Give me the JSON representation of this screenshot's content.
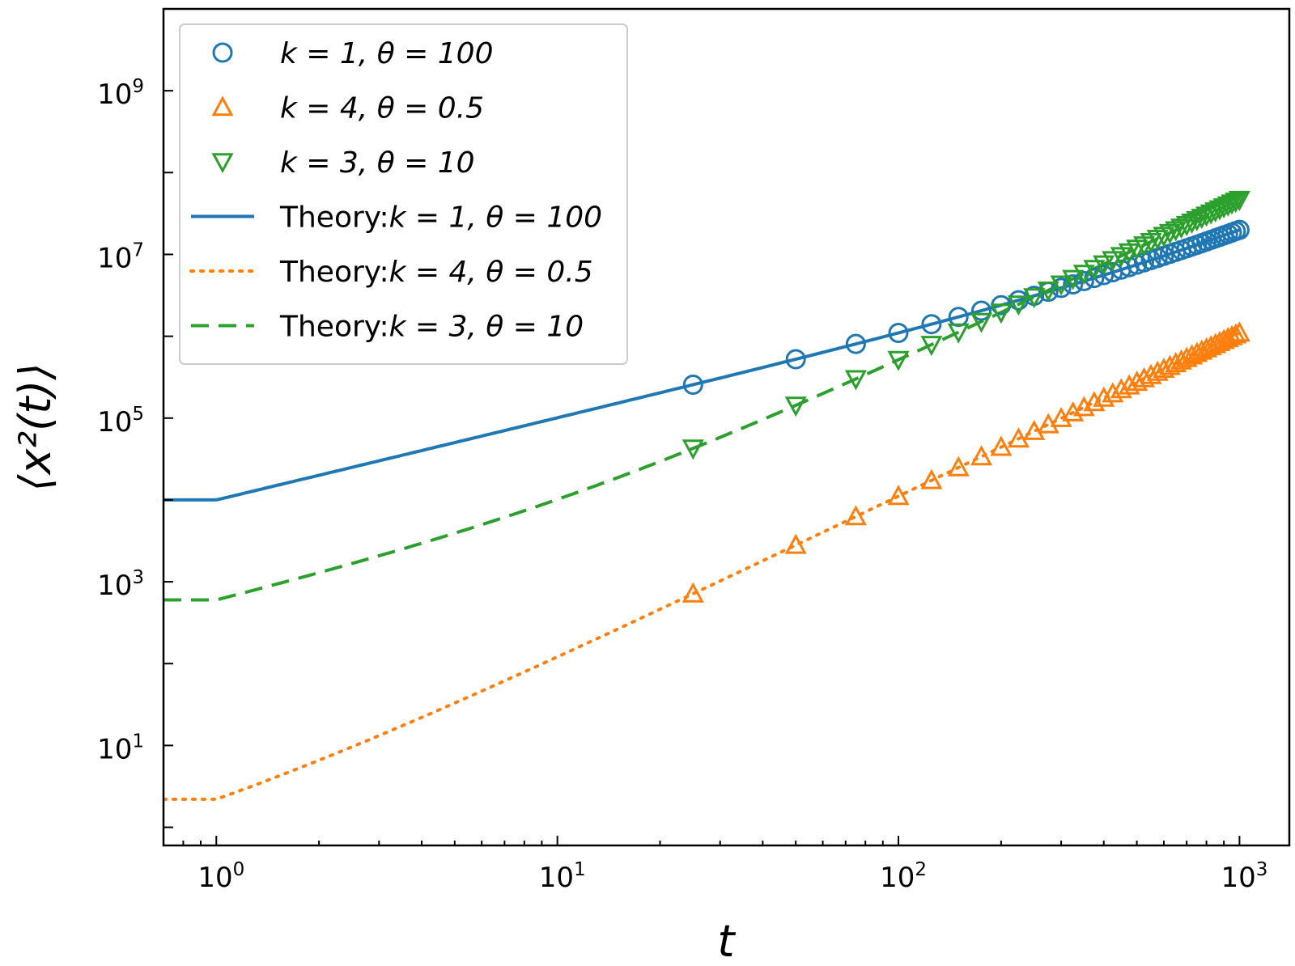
{
  "chart_data": {
    "type": "scatter",
    "xlabel": "t",
    "ylabel": "⟨x²(t)⟩",
    "x_scale": "log",
    "y_scale": "log",
    "xlim": [
      0.7,
      1400
    ],
    "ylim": [
      0.6,
      10000000000.0
    ],
    "grid": false,
    "legend_position": "top-left",
    "x_ticks": [
      {
        "value": 1,
        "base": "10",
        "exp": "0"
      },
      {
        "value": 10,
        "base": "10",
        "exp": "1"
      },
      {
        "value": 100,
        "base": "10",
        "exp": "2"
      },
      {
        "value": 1000,
        "base": "10",
        "exp": "3"
      }
    ],
    "y_ticks": [
      {
        "value": 10,
        "base": "10",
        "exp": "1"
      },
      {
        "value": 1000,
        "base": "10",
        "exp": "3"
      },
      {
        "value": 100000,
        "base": "10",
        "exp": "5"
      },
      {
        "value": 10000000,
        "base": "10",
        "exp": "7"
      },
      {
        "value": 1000000000,
        "base": "10",
        "exp": "9"
      }
    ],
    "series": [
      {
        "name": "k = 1, θ = 100",
        "kind": "markers",
        "marker": "circle",
        "color": "#1f77b4",
        "a": 10000,
        "c": 1000
      },
      {
        "name": "k = 4, θ = 0.5",
        "kind": "markers",
        "marker": "triangle-up",
        "color": "#ff7f0e",
        "a": 2.2,
        "c": 1
      },
      {
        "name": "k = 3, θ = 10",
        "kind": "markers",
        "marker": "triangle-down",
        "color": "#2ca02c",
        "a": 600,
        "c": 12
      },
      {
        "name": "Theory:k = 1, θ = 100",
        "kind": "line",
        "dash": "solid",
        "color": "#1f77b4",
        "a": 10000,
        "c": 1000
      },
      {
        "name": "Theory:k = 4, θ = 0.5",
        "kind": "line",
        "dash": "dotted",
        "color": "#ff7f0e",
        "a": 2.2,
        "c": 1
      },
      {
        "name": "Theory:k = 3, θ = 10",
        "kind": "line",
        "dash": "dashed",
        "color": "#2ca02c",
        "a": 600,
        "c": 12
      }
    ],
    "model": "y = a·t·(t + c) / (1 + c), t ≥ 1",
    "marker_times": [
      25,
      50,
      75,
      100,
      125,
      150,
      175,
      200,
      225,
      250,
      275,
      300,
      325,
      350,
      375,
      400,
      425,
      450,
      475,
      500,
      525,
      550,
      575,
      600,
      625,
      650,
      675,
      700,
      725,
      750,
      775,
      800,
      825,
      850,
      875,
      900,
      925,
      950,
      975,
      1000
    ]
  }
}
